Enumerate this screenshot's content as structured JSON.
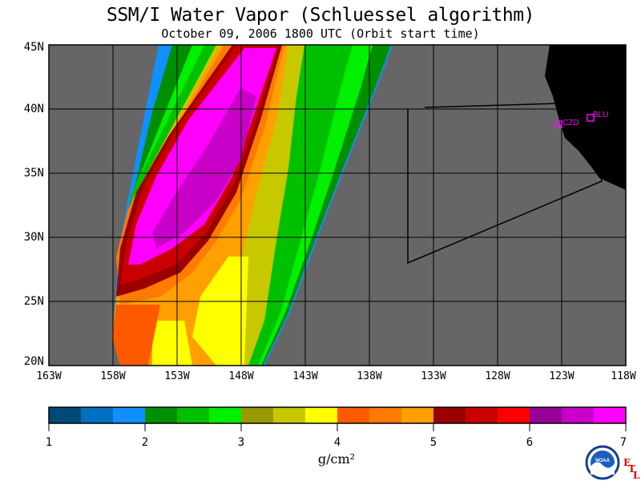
{
  "title": "SSM/I Water Vapor (Schluessel algorithm)",
  "subtitle": "October 09, 2006  1800 UTC  (Orbit start time)",
  "map": {
    "lat_labels": [
      "45N",
      "40N",
      "35N",
      "30N",
      "25N",
      "20N"
    ],
    "lon_labels": [
      "163W",
      "158W",
      "153W",
      "148W",
      "143W",
      "138W",
      "133W",
      "128W",
      "123W",
      "118W"
    ],
    "stations": [
      {
        "code": "CZD",
        "lat": 38.6,
        "lon": -123.2
      },
      {
        "code": "BLU",
        "lat": 39.3,
        "lon": -120.7
      }
    ],
    "colors": {
      "no_data": "#666666",
      "land": "#000000",
      "station": "#ff00ff"
    }
  },
  "colorbar": {
    "min": 1,
    "max": 7,
    "tick_labels": [
      "1",
      "2",
      "3",
      "4",
      "5",
      "6",
      "7"
    ],
    "units": "g/cm²",
    "colors": [
      "#004a78",
      "#0070c0",
      "#1090ff",
      "#008f00",
      "#00c000",
      "#00f000",
      "#9a9a00",
      "#c8c800",
      "#ffff00",
      "#ff5a00",
      "#ff7a00",
      "#ffa000",
      "#9a0000",
      "#c80000",
      "#ff0000",
      "#960096",
      "#c800c8",
      "#ff00ff"
    ]
  },
  "logo": {
    "text": "NOAA",
    "lab_letters": [
      "E",
      "T",
      "L"
    ]
  }
}
